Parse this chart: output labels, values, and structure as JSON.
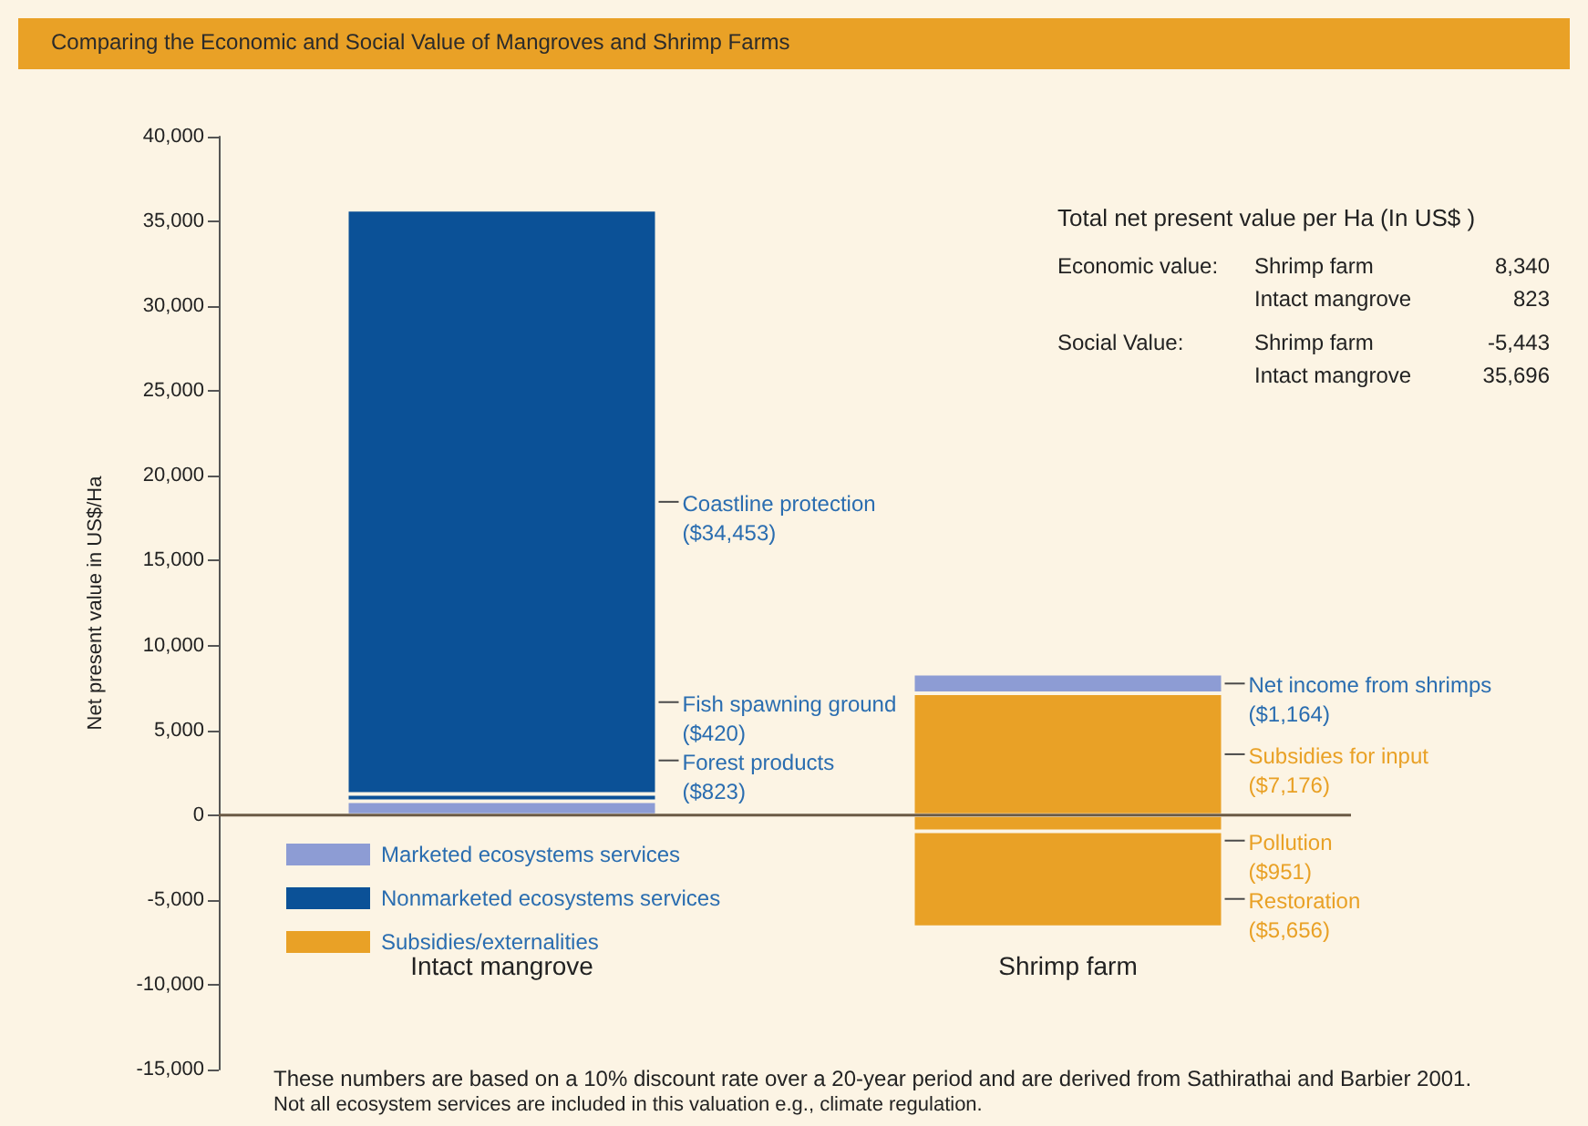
{
  "chart_data": {
    "type": "bar",
    "title": "Comparing the Economic and Social Value of Mangroves and Shrimp Farms",
    "ylabel": "Net present value in US$/Ha",
    "categories": [
      "Intact mangrove",
      "Shrimp farm"
    ],
    "stacked": true,
    "legend": "bottom left",
    "ylim": [
      -15000,
      40000
    ],
    "yticks": [
      {
        "value": -15000,
        "label": "-15,000"
      },
      {
        "value": -10000,
        "label": "-10,000"
      },
      {
        "value": -5000,
        "label": "-5,000"
      },
      {
        "value": 0,
        "label": "0"
      },
      {
        "value": 5000,
        "label": "5,000"
      },
      {
        "value": 10000,
        "label": "10,000"
      },
      {
        "value": 15000,
        "label": "15,000"
      },
      {
        "value": 20000,
        "label": "20,000"
      },
      {
        "value": 25000,
        "label": "25,000"
      },
      {
        "value": 30000,
        "label": "30,000"
      },
      {
        "value": 35000,
        "label": "35,000"
      },
      {
        "value": 40000,
        "label": "40,000"
      }
    ],
    "series": [
      {
        "name": "Marketed ecosystems services",
        "color": "#8d9cd4",
        "values": [
          823,
          null
        ]
      },
      {
        "name": "Nonmarketed ecosystems services",
        "color": "#0b5197",
        "values": [
          420,
          null
        ]
      },
      {
        "color": "#0b5197",
        "values": [
          34453,
          null
        ]
      },
      {
        "name": "Subsidies/externalities",
        "color": "#e9a126",
        "values": [
          null,
          7176
        ]
      },
      {
        "color": "#8d9cd4",
        "values": [
          null,
          1164
        ]
      },
      {
        "color": "#e9a126",
        "values": [
          null,
          -951
        ]
      },
      {
        "color": "#e9a126",
        "values": [
          null,
          -5656
        ]
      }
    ],
    "annotations": [
      "Forest products\n($823)",
      "Fish spawning ground\n($420)",
      "Coastline protection\n($34,453)",
      "Subsidies for input\n($7,176)",
      "Net income from shrimps\n($1,164)",
      "Pollution\n($951)",
      "Restoration\n($5,656)",
      "Total net present value per Ha (In US$ )",
      "Economic value:\tShrimp farm\t8,340",
      "\tIntact mangrove\t823",
      "Social Value:\tShrimp farm\t-5,443",
      "\tIntact mangrove\t35,696",
      "These numbers are based on a 10% discount rate over a 20-year period and are derived from Sathirathai and Barbier 2001.",
      "Not all ecosystem services are included in this valuation e.g., climate regulation."
    ]
  }
}
